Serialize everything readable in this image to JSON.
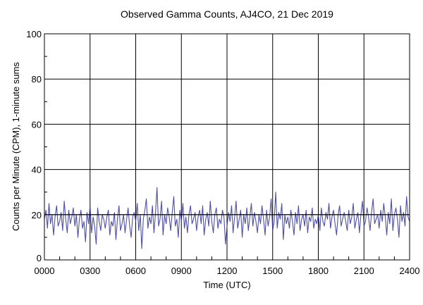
{
  "chart_data": {
    "type": "line",
    "title": "Observed Gamma Counts, AJ4CO, 21 Dec 2019",
    "xlabel": "Time (UTC)",
    "ylabel": "Counts per Minute (CPM), 1-minute sums",
    "xlim": [
      0,
      24
    ],
    "ylim": [
      0,
      100
    ],
    "x_ticks": [
      {
        "v": 0,
        "label": "0000"
      },
      {
        "v": 3,
        "label": "0300"
      },
      {
        "v": 6,
        "label": "0600"
      },
      {
        "v": 9,
        "label": "0900"
      },
      {
        "v": 12,
        "label": "1200"
      },
      {
        "v": 15,
        "label": "1500"
      },
      {
        "v": 18,
        "label": "1800"
      },
      {
        "v": 21,
        "label": "2100"
      },
      {
        "v": 24,
        "label": "2400"
      }
    ],
    "y_ticks": [
      {
        "v": 0,
        "label": "0"
      },
      {
        "v": 20,
        "label": "20"
      },
      {
        "v": 40,
        "label": "40"
      },
      {
        "v": 60,
        "label": "60"
      },
      {
        "v": 80,
        "label": "80"
      },
      {
        "v": 100,
        "label": "100"
      }
    ],
    "grid": true,
    "series_color": "#3c3c9c",
    "series": [
      {
        "name": "CPM",
        "x_step_hours": 0.1,
        "values": [
          18,
          22,
          14,
          25,
          16,
          20,
          11,
          19,
          24,
          15,
          17,
          21,
          13,
          26,
          18,
          12,
          22,
          16,
          19,
          23,
          15,
          20,
          10,
          18,
          22,
          14,
          17,
          8,
          21,
          16,
          24,
          12,
          19,
          15,
          7,
          23,
          17,
          13,
          20,
          18,
          14,
          19,
          22,
          11,
          17,
          15,
          21,
          9,
          18,
          24,
          13,
          16,
          20,
          12,
          18,
          23,
          15,
          10,
          19,
          21,
          17,
          25,
          13,
          20,
          5,
          18,
          22,
          27,
          14,
          19,
          16,
          24,
          12,
          21,
          32,
          15,
          18,
          26,
          11,
          20,
          16,
          23,
          19,
          13,
          21,
          28,
          15,
          18,
          10,
          22,
          17,
          25,
          14,
          19,
          12,
          20,
          24,
          16,
          18,
          21,
          13,
          19,
          22,
          16,
          24,
          11,
          18,
          21,
          15,
          26,
          17,
          12,
          20,
          23,
          14,
          18,
          16,
          22,
          19,
          7,
          15,
          21,
          17,
          24,
          12,
          19,
          26,
          14,
          18,
          22,
          10,
          20,
          16,
          23,
          13,
          19,
          25,
          15,
          21,
          17,
          12,
          20,
          16,
          24,
          18,
          11,
          22,
          15,
          19,
          27,
          13,
          17,
          30,
          14,
          21,
          18,
          25,
          9,
          20,
          16,
          19,
          14,
          22,
          17,
          11,
          21,
          16,
          24,
          13,
          18,
          20,
          15,
          22,
          12,
          19,
          17,
          23,
          14,
          18,
          16,
          20,
          13,
          23,
          17,
          15,
          21,
          18,
          25,
          14,
          19,
          22,
          16,
          11,
          20,
          24,
          15,
          18,
          21,
          17,
          13,
          22,
          16,
          19,
          25,
          14,
          18,
          21,
          12,
          20,
          26,
          15,
          17,
          23,
          19,
          13,
          21,
          27,
          16,
          18,
          20,
          14,
          22,
          17,
          25,
          19,
          11,
          21,
          16,
          27,
          13,
          20,
          23,
          18,
          10,
          24,
          17,
          21,
          15,
          28,
          19,
          17
        ]
      }
    ]
  }
}
